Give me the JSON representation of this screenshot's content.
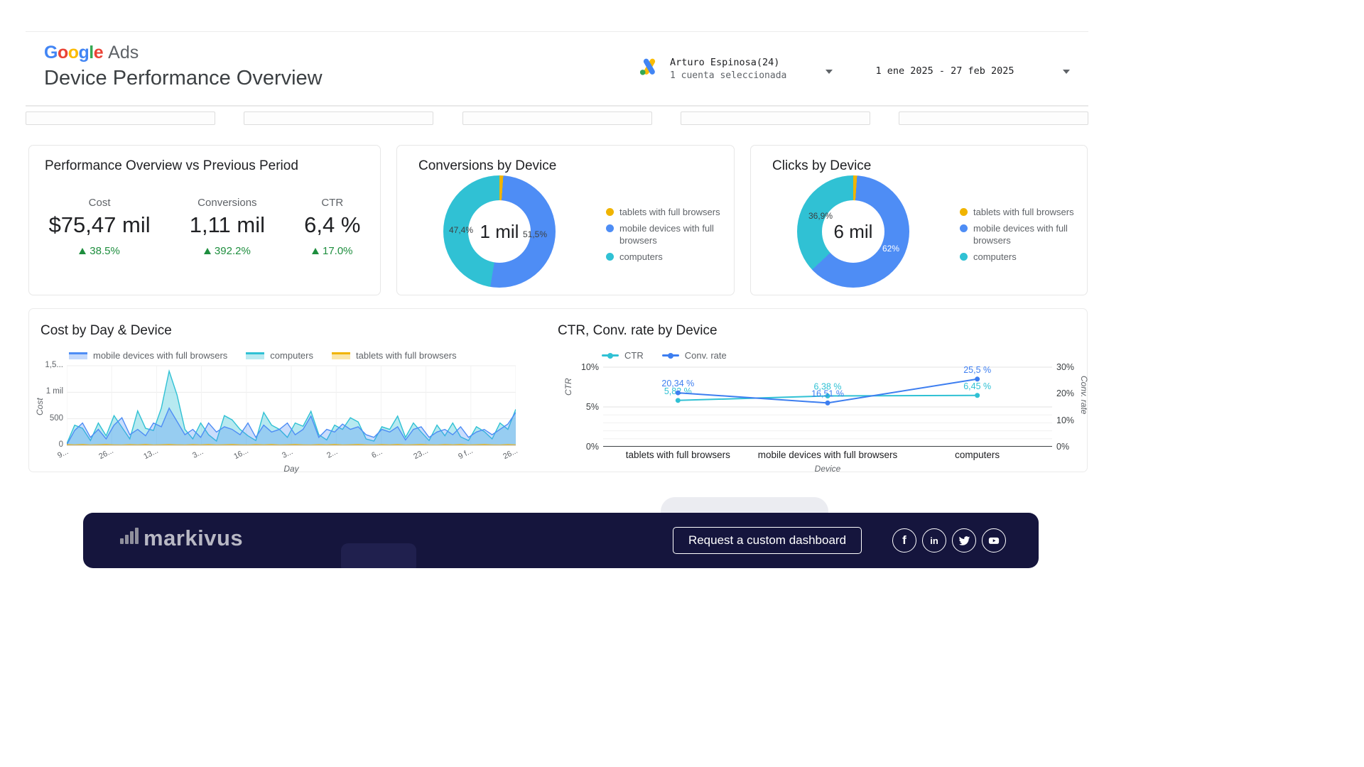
{
  "header": {
    "logo_google": "Google",
    "logo_ads": "Ads",
    "google_letter_colors": [
      "#4285F4",
      "#EA4335",
      "#FBBC04",
      "#4285F4",
      "#34A853",
      "#EA4335"
    ],
    "title": "Device Performance Overview",
    "account": {
      "name": "Arturo Espinosa(24)",
      "selection": "1 cuenta seleccionada"
    },
    "date_range": "1 ene 2025 - 27 feb 2025"
  },
  "colors": {
    "blue": "#4E8DF5",
    "teal": "#30C1D4",
    "yellow": "#F0B400",
    "conv_line_blue": "#3D7EF0",
    "positive_green": "#1e8e3e",
    "footer_navy": "#15153d"
  },
  "kpi": {
    "title": "Performance Overview vs Previous Period",
    "metrics": [
      {
        "label": "Cost",
        "value": "$75,47 mil",
        "delta": "38.5%"
      },
      {
        "label": "Conversions",
        "value": "1,11 mil",
        "delta": "392.2%"
      },
      {
        "label": "CTR",
        "value": "6,4 %",
        "delta": "17.0%"
      }
    ]
  },
  "chart_data": [
    {
      "type": "pie",
      "title": "Conversions by Device",
      "center_label": "1 mil",
      "slices": [
        {
          "label": "tablets with full browsers",
          "pct": 1.1,
          "color": "#F0B400"
        },
        {
          "label": "mobile devices with full browsers",
          "pct": 51.5,
          "color": "#4E8DF5"
        },
        {
          "label": "computers",
          "pct": 47.4,
          "color": "#30C1D4"
        }
      ],
      "slice_labels": [
        "47,4%",
        "51,5%"
      ]
    },
    {
      "type": "pie",
      "title": "Clicks by Device",
      "center_label": "6 mil",
      "slices": [
        {
          "label": "tablets with full browsers",
          "pct": 1.1,
          "color": "#F0B400"
        },
        {
          "label": "mobile devices with full browsers",
          "pct": 62,
          "color": "#4E8DF5"
        },
        {
          "label": "computers",
          "pct": 36.9,
          "color": "#30C1D4"
        }
      ],
      "slice_labels": [
        "36,9%",
        "62%"
      ]
    },
    {
      "type": "area",
      "title": "Cost by Day & Device",
      "xlabel": "Day",
      "ylabel": "Cost",
      "ylim": [
        0,
        1500
      ],
      "y_ticks": [
        {
          "label": "1,5...",
          "value": 1500
        },
        {
          "label": "1 mil",
          "value": 1000
        },
        {
          "label": "500",
          "value": 500
        },
        {
          "label": "0",
          "value": 0
        }
      ],
      "x_ticks": [
        "9...",
        "26...",
        "13...",
        "3...",
        "16...",
        "3...",
        "2...",
        "6...",
        "23...",
        "9 f...",
        "26..."
      ],
      "series": [
        {
          "name": "mobile devices with full browsers",
          "color": "#4E8DF5",
          "values": [
            10,
            280,
            420,
            150,
            300,
            120,
            380,
            520,
            200,
            300,
            180,
            420,
            350,
            700,
            450,
            200,
            300,
            150,
            420,
            250,
            350,
            300,
            200,
            420,
            150,
            380,
            250,
            300,
            420,
            200,
            300,
            550,
            150,
            300,
            250,
            400,
            300,
            350,
            200,
            150,
            300,
            250,
            350,
            100,
            300,
            350,
            150,
            250,
            300,
            200,
            350,
            150,
            250,
            300,
            200,
            300,
            400,
            620
          ]
        },
        {
          "name": "computers",
          "color": "#30C1D4",
          "values": [
            30,
            380,
            320,
            90,
            420,
            180,
            560,
            340,
            120,
            650,
            320,
            280,
            700,
            1400,
            950,
            300,
            120,
            420,
            200,
            80,
            560,
            480,
            300,
            180,
            90,
            620,
            380,
            300,
            150,
            420,
            360,
            640,
            200,
            100,
            380,
            300,
            520,
            440,
            120,
            80,
            350,
            300,
            550,
            150,
            420,
            250,
            90,
            380,
            180,
            420,
            160,
            90,
            350,
            260,
            120,
            420,
            300,
            680
          ]
        },
        {
          "name": "tablets with full browsers",
          "color": "#F0B400",
          "values": [
            12,
            8,
            15,
            6,
            10,
            14,
            8,
            5,
            12,
            8,
            15,
            6,
            10,
            14,
            8,
            5,
            12,
            8,
            15,
            6,
            10,
            14,
            8,
            5,
            12,
            8,
            15,
            6,
            10,
            14,
            8,
            5,
            12,
            8,
            15,
            6,
            10,
            14,
            8,
            5,
            12,
            8,
            15,
            6,
            10,
            14,
            8,
            5,
            12,
            8,
            15,
            6,
            10,
            14,
            8,
            5,
            12,
            8
          ]
        }
      ]
    },
    {
      "type": "line",
      "title": "CTR, Conv. rate by Device",
      "xlabel": "Device",
      "left_axis": {
        "label": "CTR",
        "max": 10,
        "ticks": [
          {
            "label": "0%",
            "value": 0
          },
          {
            "label": "5%",
            "value": 5
          },
          {
            "label": "10%",
            "value": 10
          }
        ]
      },
      "right_axis": {
        "label": "Conv. rate",
        "max": 30,
        "ticks": [
          {
            "label": "0%",
            "value": 0
          },
          {
            "label": "10%",
            "value": 10
          },
          {
            "label": "20%",
            "value": 20
          },
          {
            "label": "30%",
            "value": 30
          }
        ]
      },
      "categories": [
        "tablets with full browsers",
        "mobile devices with full browsers",
        "computers"
      ],
      "series": [
        {
          "name": "CTR",
          "axis": "left",
          "color": "#30C1D4",
          "values": [
            5.82,
            6.38,
            6.45
          ],
          "labels": [
            "5,82 %",
            "6,38 %",
            "6,45 %"
          ]
        },
        {
          "name": "Conv. rate",
          "axis": "right",
          "color": "#3D7EF0",
          "values": [
            20.34,
            16.51,
            25.5
          ],
          "labels": [
            "20,34 %",
            "16,51 %",
            "25,5 %"
          ]
        }
      ]
    }
  ],
  "footer": {
    "brand": "markivus",
    "cta": "Request a custom dashboard",
    "social": [
      {
        "name": "facebook",
        "glyph": "f"
      },
      {
        "name": "linkedin",
        "glyph": "in"
      },
      {
        "name": "twitter"
      },
      {
        "name": "youtube"
      }
    ]
  }
}
